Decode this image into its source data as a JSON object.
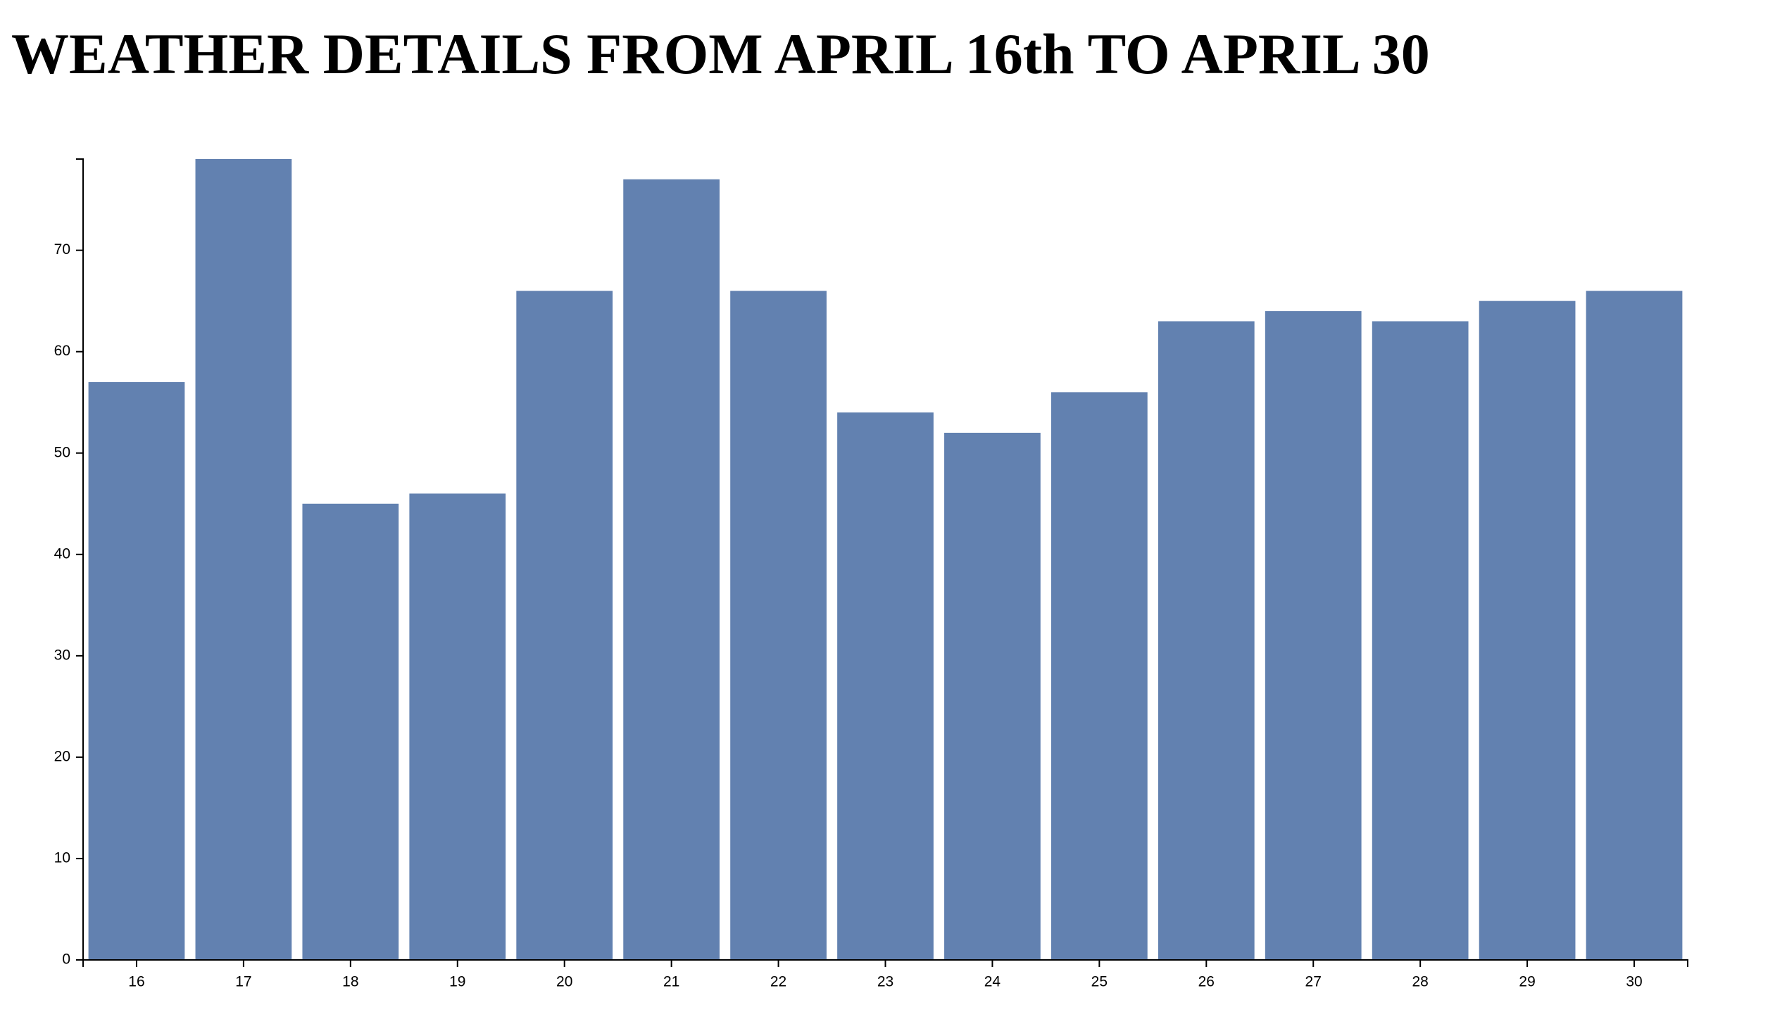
{
  "title": "WEATHER DETAILS FROM APRIL 16th TO APRIL 30",
  "chart_data": {
    "type": "bar",
    "title": "WEATHER DETAILS FROM APRIL 16th TO APRIL 30",
    "xlabel": "",
    "ylabel": "",
    "categories": [
      "16",
      "17",
      "18",
      "19",
      "20",
      "21",
      "22",
      "23",
      "24",
      "25",
      "26",
      "27",
      "28",
      "29",
      "30"
    ],
    "values": [
      57,
      79,
      45,
      46,
      66,
      77,
      66,
      54,
      52,
      56,
      63,
      64,
      63,
      65,
      66
    ],
    "ylim": [
      0,
      79
    ],
    "yticks": [
      0,
      10,
      20,
      30,
      40,
      50,
      60,
      70
    ],
    "grid": false,
    "bar_color": "#6281b0",
    "axis_color": "#000000"
  }
}
